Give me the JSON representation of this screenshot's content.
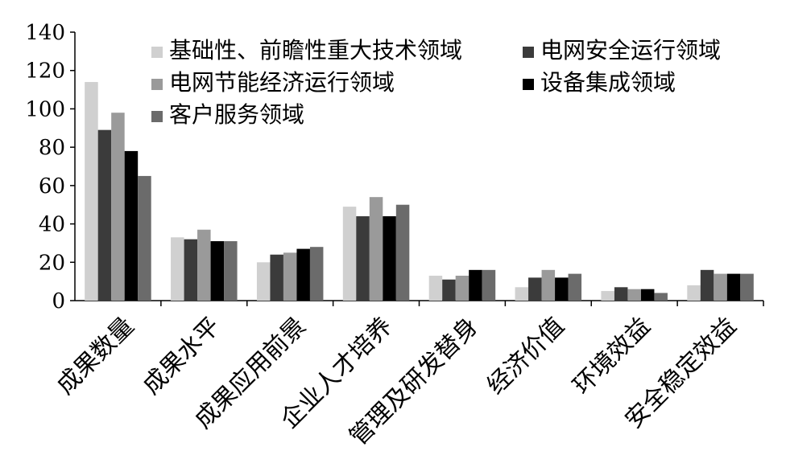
{
  "chart_data": {
    "type": "bar",
    "ylim": [
      0,
      140
    ],
    "yticks": [
      0,
      20,
      40,
      60,
      80,
      100,
      120,
      140
    ],
    "grid": false,
    "legend_position": "top-right",
    "categories": [
      "成果数量",
      "成果水平",
      "成果应用前景",
      "企业人才培养",
      "管理及研发替身",
      "经济价值",
      "环境效益",
      "安全稳定效益"
    ],
    "series": [
      {
        "name": "基础性、前瞻性重大技术领域",
        "color": "#d0d0d0",
        "values": [
          114,
          33,
          20,
          49,
          13,
          7,
          5,
          8
        ]
      },
      {
        "name": "电网安全运行领域",
        "color": "#3b3b3b",
        "values": [
          89,
          32,
          24,
          44,
          11,
          12,
          7,
          16
        ]
      },
      {
        "name": "电网节能经济运行领域",
        "color": "#9a9a9a",
        "values": [
          98,
          37,
          25,
          54,
          13,
          16,
          6,
          14
        ]
      },
      {
        "name": "设备集成领域",
        "color": "#000000",
        "values": [
          78,
          31,
          27,
          44,
          16,
          12,
          6,
          14
        ]
      },
      {
        "name": "客户服务领域",
        "color": "#6b6b6b",
        "values": [
          65,
          31,
          28,
          50,
          16,
          14,
          4,
          14
        ]
      }
    ]
  }
}
